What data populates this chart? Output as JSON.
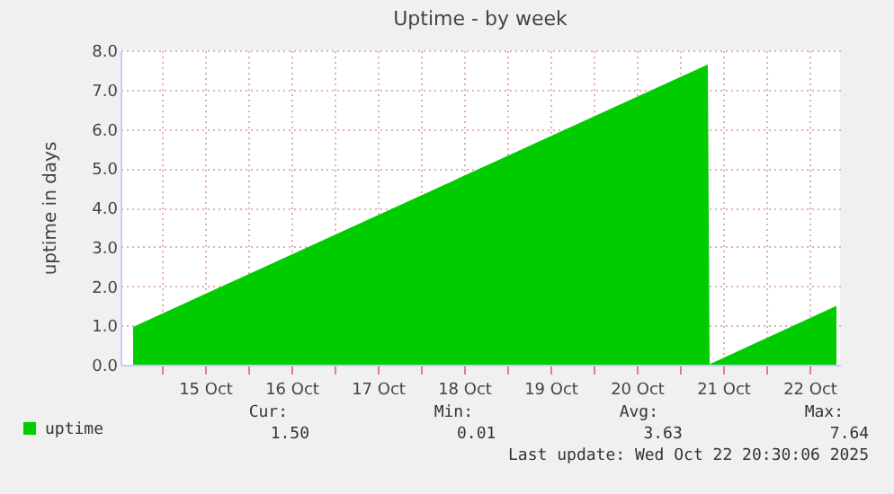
{
  "chart_data": {
    "type": "area",
    "title": "Uptime - by week",
    "ylabel": "uptime in days",
    "series": [
      {
        "name": "uptime",
        "color": "#00cc00",
        "x": [
          "2025-10-14T16:00",
          "2025-10-21T07:45",
          "2025-10-21T08:15",
          "2025-10-22T19:30"
        ],
        "values": [
          0.96,
          7.64,
          0.01,
          1.5
        ]
      }
    ],
    "xlim": [
      "2025-10-14T12:30",
      "2025-10-22T20:30"
    ],
    "xticks": [
      {
        "value": "2025-10-15T00:00",
        "label": null
      },
      {
        "value": "2025-10-15T12:00",
        "label": "15 Oct"
      },
      {
        "value": "2025-10-16T00:00",
        "label": null
      },
      {
        "value": "2025-10-16T12:00",
        "label": "16 Oct"
      },
      {
        "value": "2025-10-17T00:00",
        "label": null
      },
      {
        "value": "2025-10-17T12:00",
        "label": "17 Oct"
      },
      {
        "value": "2025-10-18T00:00",
        "label": null
      },
      {
        "value": "2025-10-18T12:00",
        "label": "18 Oct"
      },
      {
        "value": "2025-10-19T00:00",
        "label": null
      },
      {
        "value": "2025-10-19T12:00",
        "label": "19 Oct"
      },
      {
        "value": "2025-10-20T00:00",
        "label": null
      },
      {
        "value": "2025-10-20T12:00",
        "label": "20 Oct"
      },
      {
        "value": "2025-10-21T00:00",
        "label": null
      },
      {
        "value": "2025-10-21T12:00",
        "label": "21 Oct"
      },
      {
        "value": "2025-10-22T00:00",
        "label": null
      },
      {
        "value": "2025-10-22T12:00",
        "label": "22 Oct"
      }
    ],
    "ylim": [
      0,
      8
    ],
    "yticks": [
      {
        "value": 0,
        "label": "0.0"
      },
      {
        "value": 1,
        "label": "1.0"
      },
      {
        "value": 2,
        "label": "2.0"
      },
      {
        "value": 3,
        "label": "3.0"
      },
      {
        "value": 4,
        "label": "4.0"
      },
      {
        "value": 5,
        "label": "5.0"
      },
      {
        "value": 6,
        "label": "6.0"
      },
      {
        "value": 7,
        "label": "7.0"
      },
      {
        "value": 8,
        "label": "8.0"
      }
    ],
    "grid": true,
    "legend": "bottom left",
    "annotations": [
      "Cur:",
      "Min:",
      "Avg:",
      "Max:",
      "1.50",
      "0.01",
      "3.63",
      "7.64",
      "Last update: Wed Oct 22 20:30:06 2025"
    ]
  }
}
